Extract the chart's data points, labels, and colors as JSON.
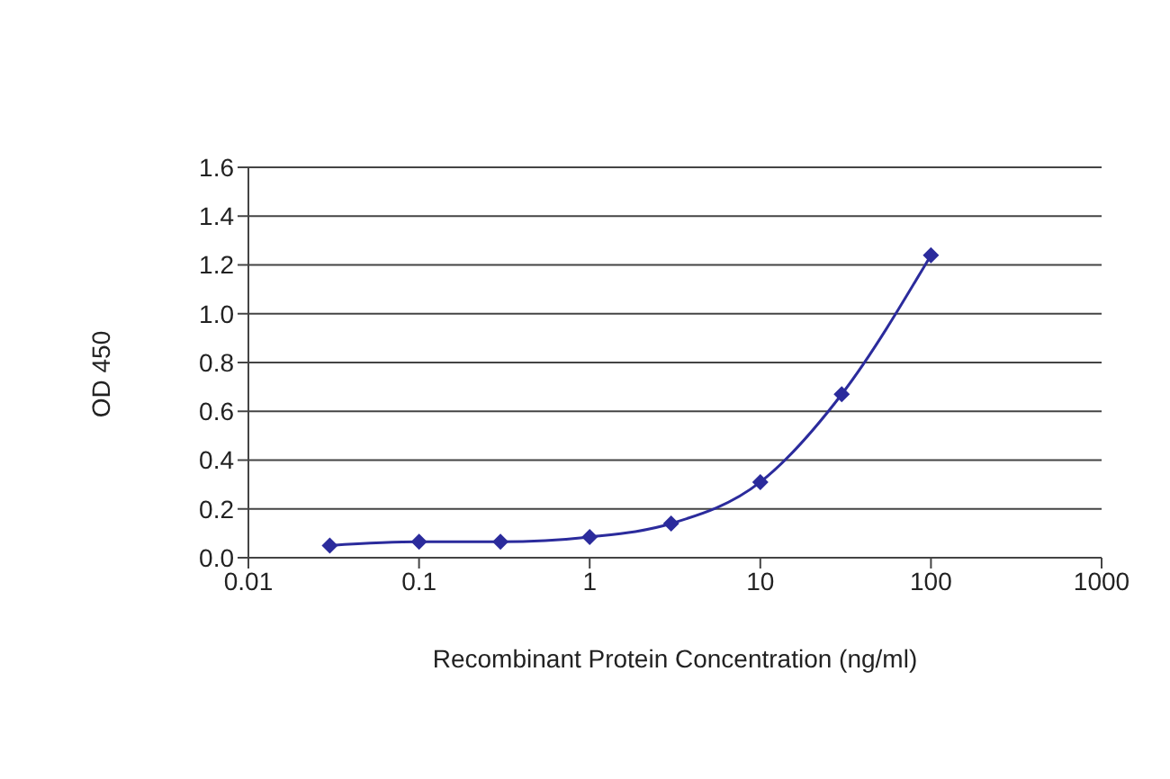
{
  "chart_data": {
    "type": "line",
    "xlabel": "Recombinant Protein Concentration (ng/ml)",
    "ylabel": "OD 450",
    "x": [
      0.03,
      0.1,
      0.3,
      1,
      3,
      10,
      30,
      100
    ],
    "series": [
      {
        "color": "#2b2b9c",
        "values": [
          0.05,
          0.065,
          0.065,
          0.085,
          0.14,
          0.31,
          0.67,
          1.24
        ]
      }
    ],
    "log": "x",
    "xlim": [
      0.01,
      1000
    ],
    "xticks": [
      0.01,
      0.1,
      1,
      10,
      100,
      1000
    ],
    "ylim": [
      0,
      1.6
    ],
    "yticks": [
      {
        "value": 0,
        "label": "0.0"
      },
      {
        "value": 0.2,
        "label": "0.2"
      },
      {
        "value": 0.4,
        "label": "0.4"
      },
      {
        "value": 0.6,
        "label": "0.6"
      },
      {
        "value": 0.8,
        "label": "0.8"
      },
      {
        "value": 1,
        "label": "1.0"
      },
      {
        "value": 1.2,
        "label": "1.2"
      },
      {
        "value": 1.4,
        "label": "1.4"
      },
      {
        "value": 1.6,
        "label": "1.6"
      }
    ],
    "grid": "y",
    "marker": "diamond",
    "line_style": "solid",
    "legend": false
  }
}
